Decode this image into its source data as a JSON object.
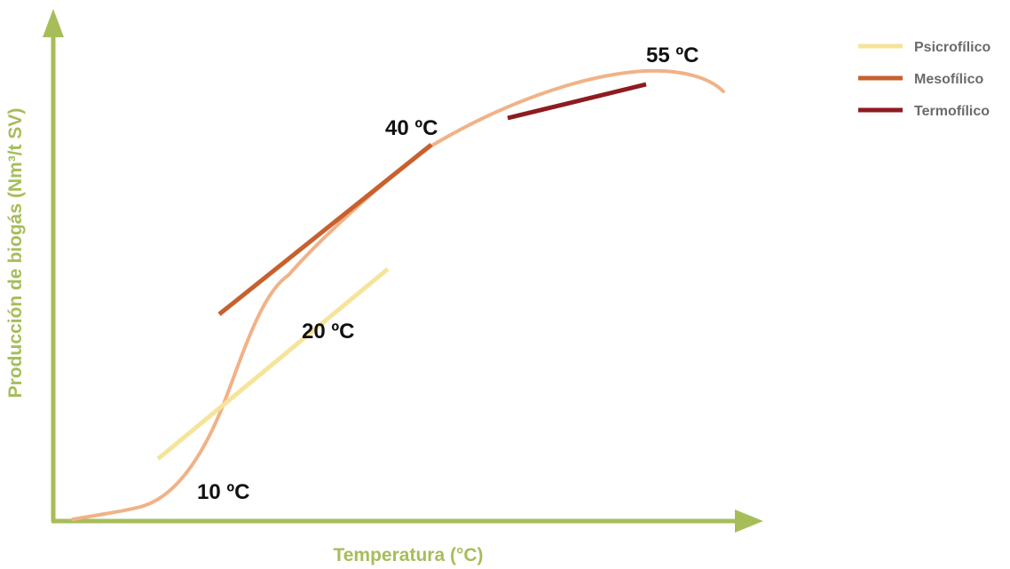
{
  "chart_data": {
    "type": "line",
    "xlabel": "Temperatura (°C)",
    "ylabel": "Producción de biogás (Nm³/t SV)",
    "colors": {
      "axis": "#a7bd5a",
      "curve": "#f1b287",
      "psicrofilico": "#f6e49a",
      "mesofilico": "#c8602e",
      "termofilico": "#8f1b22"
    },
    "legend": {
      "position": "top-right",
      "entries": [
        {
          "name": "Psicrofílico",
          "color": "#f6e49a"
        },
        {
          "name": "Mesofílico",
          "color": "#c8602e"
        },
        {
          "name": "Termofílico",
          "color": "#8f1b22"
        }
      ]
    },
    "annotations": [
      "10 ºC",
      "20 ºC",
      "40 ºC",
      "55 ºC"
    ]
  }
}
